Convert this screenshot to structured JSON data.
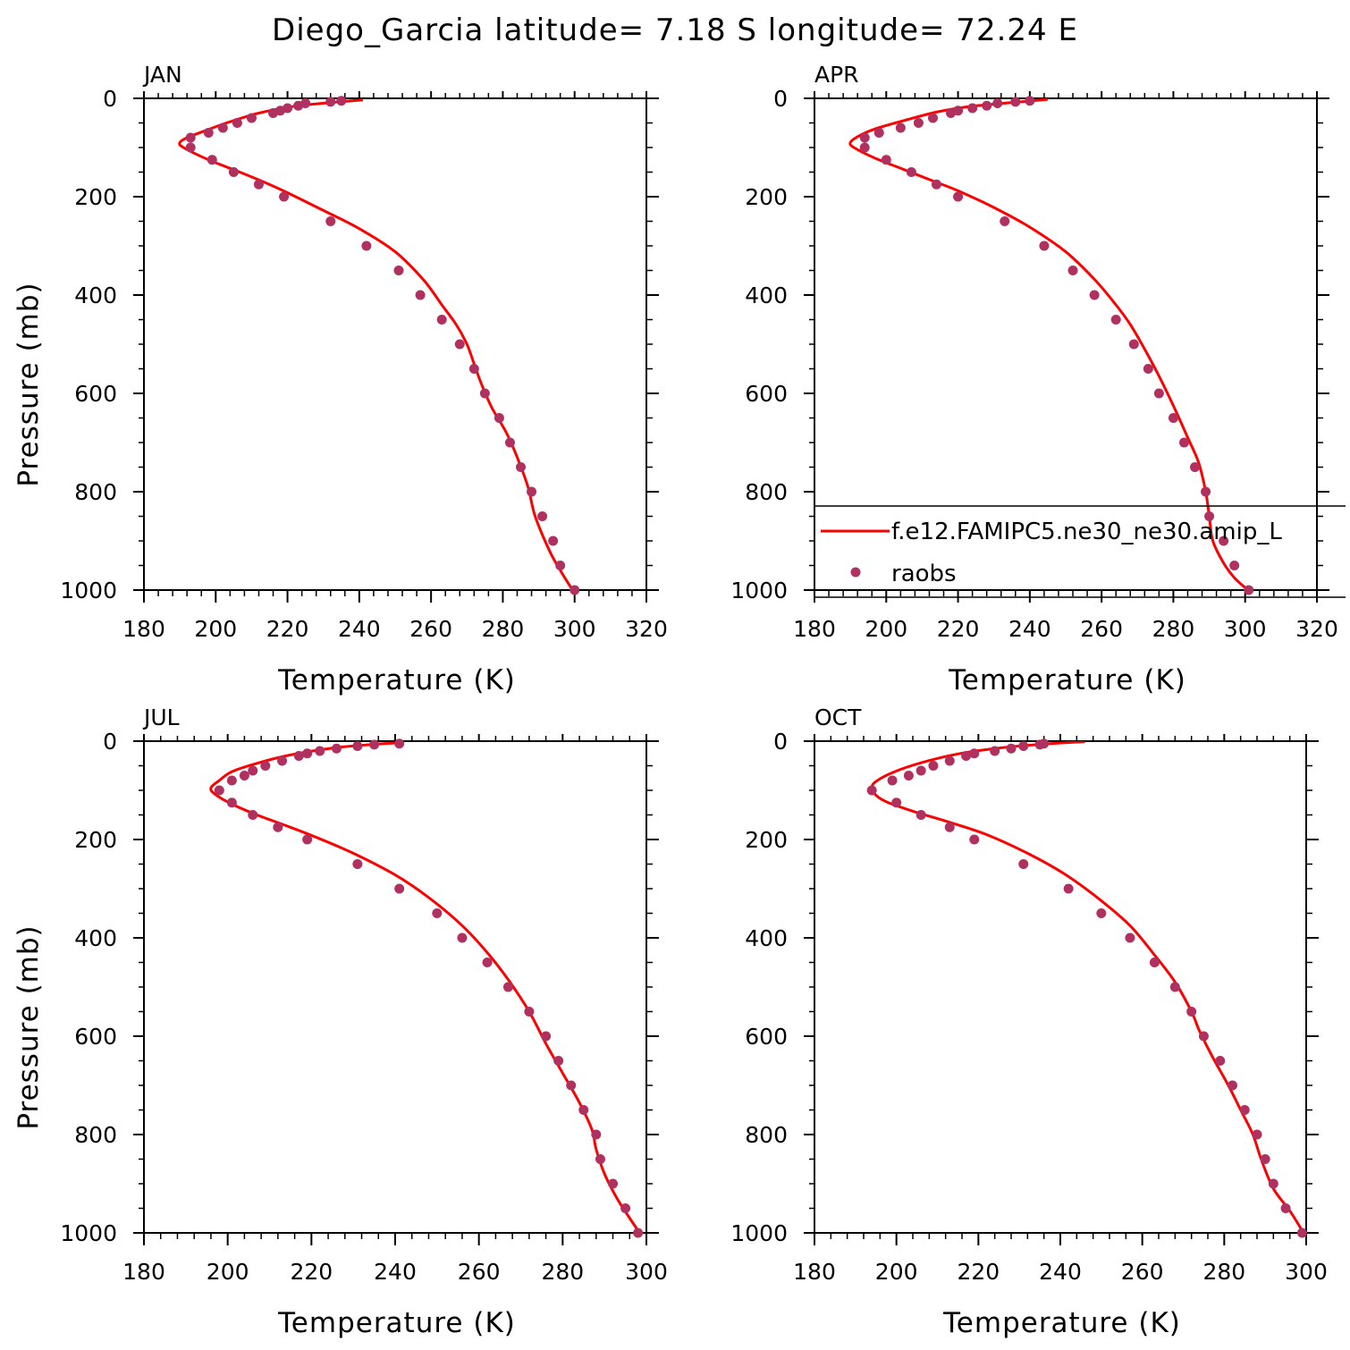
{
  "title": "Diego_Garcia  latitude= 7.18 S longitude= 72.24 E",
  "colors": {
    "model_line": "#ff0000",
    "obs_marker": "#b03060",
    "axis": "#000000"
  },
  "legend": {
    "placement": "inside APR panel, bottom",
    "entries": [
      {
        "label": "f.e12.FAMIPC5.ne30_ne30.amip_L",
        "kind": "line"
      },
      {
        "label": "raobs",
        "kind": "marker"
      }
    ]
  },
  "chart_data": [
    {
      "type": "line+scatter",
      "panel": "JAN",
      "xlabel": "Temperature (K)",
      "ylabel": "Pressure (mb)",
      "xlim": [
        180,
        320
      ],
      "ylim": [
        1000,
        0
      ],
      "xticks": [
        180,
        200,
        220,
        240,
        260,
        280,
        300,
        320
      ],
      "yticks": [
        0,
        200,
        400,
        600,
        800,
        1000
      ],
      "model": {
        "name": "f.e12.FAMIPC5.ne30_ne30.amip_L",
        "points": [
          [
            241,
            3
          ],
          [
            233,
            8
          ],
          [
            222,
            16
          ],
          [
            212,
            30
          ],
          [
            203,
            50
          ],
          [
            197,
            66
          ],
          [
            192,
            80
          ],
          [
            190,
            90
          ],
          [
            191,
            100
          ],
          [
            198,
            125
          ],
          [
            206,
            148
          ],
          [
            214,
            172
          ],
          [
            220,
            192
          ],
          [
            230,
            228
          ],
          [
            240,
            265
          ],
          [
            250,
            312
          ],
          [
            258,
            370
          ],
          [
            263,
            420
          ],
          [
            267,
            460
          ],
          [
            270,
            500
          ],
          [
            272,
            540
          ],
          [
            274,
            580
          ],
          [
            277,
            630
          ],
          [
            281,
            680
          ],
          [
            284,
            730
          ],
          [
            287,
            790
          ],
          [
            289,
            850
          ],
          [
            293,
            920
          ],
          [
            296,
            960
          ],
          [
            299,
            995
          ]
        ]
      },
      "observations": {
        "name": "raobs",
        "points": [
          [
            235,
            5
          ],
          [
            232,
            7
          ],
          [
            225,
            10
          ],
          [
            223,
            15
          ],
          [
            220,
            20
          ],
          [
            218,
            25
          ],
          [
            216,
            30
          ],
          [
            210,
            40
          ],
          [
            206,
            50
          ],
          [
            202,
            60
          ],
          [
            198,
            70
          ],
          [
            193,
            80
          ],
          [
            193,
            100
          ],
          [
            199,
            125
          ],
          [
            205,
            150
          ],
          [
            212,
            175
          ],
          [
            219,
            200
          ],
          [
            232,
            250
          ],
          [
            242,
            300
          ],
          [
            251,
            350
          ],
          [
            257,
            400
          ],
          [
            263,
            450
          ],
          [
            268,
            500
          ],
          [
            272,
            550
          ],
          [
            275,
            600
          ],
          [
            279,
            650
          ],
          [
            282,
            700
          ],
          [
            285,
            750
          ],
          [
            288,
            800
          ],
          [
            291,
            850
          ],
          [
            294,
            900
          ],
          [
            296,
            950
          ],
          [
            300,
            1000
          ]
        ]
      }
    },
    {
      "type": "line+scatter",
      "panel": "APR",
      "xlabel": "Temperature (K)",
      "ylabel": "",
      "xlim": [
        180,
        320
      ],
      "ylim": [
        1000,
        0
      ],
      "xticks": [
        180,
        200,
        220,
        240,
        260,
        280,
        300,
        320
      ],
      "yticks": [
        0,
        200,
        400,
        600,
        800,
        1000
      ],
      "model": {
        "name": "f.e12.FAMIPC5.ne30_ne30.amip_L",
        "points": [
          [
            245,
            2
          ],
          [
            236,
            8
          ],
          [
            224,
            16
          ],
          [
            214,
            28
          ],
          [
            205,
            45
          ],
          [
            197,
            62
          ],
          [
            192,
            78
          ],
          [
            190,
            90
          ],
          [
            191,
            100
          ],
          [
            197,
            122
          ],
          [
            205,
            145
          ],
          [
            213,
            168
          ],
          [
            220,
            188
          ],
          [
            230,
            222
          ],
          [
            240,
            262
          ],
          [
            250,
            312
          ],
          [
            258,
            368
          ],
          [
            264,
            420
          ],
          [
            268,
            460
          ],
          [
            272,
            510
          ],
          [
            276,
            565
          ],
          [
            280,
            625
          ],
          [
            284,
            690
          ],
          [
            287,
            740
          ],
          [
            289,
            800
          ],
          [
            290,
            850
          ],
          [
            291,
            900
          ],
          [
            294,
            945
          ],
          [
            297,
            975
          ],
          [
            300,
            995
          ]
        ]
      },
      "observations": {
        "name": "raobs",
        "points": [
          [
            240,
            5
          ],
          [
            236,
            7
          ],
          [
            231,
            10
          ],
          [
            228,
            15
          ],
          [
            224,
            20
          ],
          [
            220,
            25
          ],
          [
            218,
            30
          ],
          [
            213,
            40
          ],
          [
            209,
            50
          ],
          [
            204,
            60
          ],
          [
            198,
            70
          ],
          [
            194,
            80
          ],
          [
            194,
            100
          ],
          [
            200,
            125
          ],
          [
            207,
            150
          ],
          [
            214,
            175
          ],
          [
            220,
            200
          ],
          [
            233,
            250
          ],
          [
            244,
            300
          ],
          [
            252,
            350
          ],
          [
            258,
            400
          ],
          [
            264,
            450
          ],
          [
            269,
            500
          ],
          [
            273,
            550
          ],
          [
            276,
            600
          ],
          [
            280,
            650
          ],
          [
            283,
            700
          ],
          [
            286,
            750
          ],
          [
            289,
            800
          ],
          [
            290,
            850
          ],
          [
            294,
            900
          ],
          [
            297,
            950
          ],
          [
            301,
            1000
          ]
        ]
      }
    },
    {
      "type": "line+scatter",
      "panel": "JUL",
      "xlabel": "Temperature (K)",
      "ylabel": "Pressure (mb)",
      "xlim": [
        180,
        300
      ],
      "ylim": [
        1000,
        0
      ],
      "xticks": [
        180,
        200,
        220,
        240,
        260,
        280,
        300
      ],
      "yticks": [
        0,
        200,
        400,
        600,
        800,
        1000
      ],
      "model": {
        "name": "f.e12.FAMIPC5.ne30_ne30.amip_L",
        "points": [
          [
            242,
            3
          ],
          [
            234,
            7
          ],
          [
            225,
            14
          ],
          [
            215,
            28
          ],
          [
            207,
            45
          ],
          [
            201,
            62
          ],
          [
            198,
            80
          ],
          [
            196,
            95
          ],
          [
            197,
            108
          ],
          [
            201,
            128
          ],
          [
            207,
            150
          ],
          [
            214,
            172
          ],
          [
            221,
            195
          ],
          [
            230,
            228
          ],
          [
            240,
            272
          ],
          [
            248,
            318
          ],
          [
            256,
            375
          ],
          [
            262,
            430
          ],
          [
            267,
            485
          ],
          [
            272,
            550
          ],
          [
            276,
            615
          ],
          [
            280,
            675
          ],
          [
            284,
            735
          ],
          [
            287,
            790
          ],
          [
            288,
            830
          ],
          [
            290,
            880
          ],
          [
            293,
            930
          ],
          [
            296,
            970
          ],
          [
            298,
            995
          ]
        ]
      },
      "observations": {
        "name": "raobs",
        "points": [
          [
            241,
            5
          ],
          [
            235,
            7
          ],
          [
            231,
            10
          ],
          [
            226,
            15
          ],
          [
            222,
            20
          ],
          [
            219,
            25
          ],
          [
            217,
            30
          ],
          [
            213,
            40
          ],
          [
            209,
            50
          ],
          [
            206,
            60
          ],
          [
            204,
            70
          ],
          [
            201,
            80
          ],
          [
            198,
            100
          ],
          [
            201,
            125
          ],
          [
            206,
            150
          ],
          [
            212,
            175
          ],
          [
            219,
            200
          ],
          [
            231,
            250
          ],
          [
            241,
            300
          ],
          [
            250,
            350
          ],
          [
            256,
            400
          ],
          [
            262,
            450
          ],
          [
            267,
            500
          ],
          [
            272,
            550
          ],
          [
            276,
            600
          ],
          [
            279,
            650
          ],
          [
            282,
            700
          ],
          [
            285,
            750
          ],
          [
            288,
            800
          ],
          [
            289,
            850
          ],
          [
            292,
            900
          ],
          [
            295,
            950
          ],
          [
            298,
            1000
          ]
        ]
      }
    },
    {
      "type": "line+scatter",
      "panel": "OCT",
      "xlabel": "Temperature (K)",
      "ylabel": "",
      "xlim": [
        180,
        300
      ],
      "ylim": [
        1000,
        0
      ],
      "xticks": [
        180,
        200,
        220,
        240,
        260,
        280,
        300
      ],
      "yticks": [
        0,
        200,
        400,
        600,
        800,
        1000
      ],
      "model": {
        "name": "f.e12.FAMIPC5.ne30_ne30.amip_L",
        "points": [
          [
            246,
            1
          ],
          [
            236,
            6
          ],
          [
            225,
            14
          ],
          [
            215,
            26
          ],
          [
            206,
            44
          ],
          [
            199,
            64
          ],
          [
            195,
            82
          ],
          [
            194,
            95
          ],
          [
            195,
            110
          ],
          [
            198,
            125
          ],
          [
            205,
            145
          ],
          [
            213,
            165
          ],
          [
            222,
            190
          ],
          [
            232,
            228
          ],
          [
            241,
            270
          ],
          [
            249,
            318
          ],
          [
            257,
            375
          ],
          [
            263,
            435
          ],
          [
            268,
            490
          ],
          [
            272,
            550
          ],
          [
            274,
            590
          ],
          [
            277,
            640
          ],
          [
            281,
            700
          ],
          [
            284,
            750
          ],
          [
            287,
            800
          ],
          [
            289,
            850
          ],
          [
            292,
            910
          ],
          [
            296,
            955
          ],
          [
            299,
            995
          ]
        ]
      },
      "observations": {
        "name": "raobs",
        "points": [
          [
            236,
            5
          ],
          [
            235,
            7
          ],
          [
            231,
            10
          ],
          [
            228,
            15
          ],
          [
            224,
            20
          ],
          [
            219,
            25
          ],
          [
            217,
            30
          ],
          [
            213,
            40
          ],
          [
            209,
            50
          ],
          [
            206,
            60
          ],
          [
            203,
            70
          ],
          [
            199,
            80
          ],
          [
            194,
            100
          ],
          [
            200,
            125
          ],
          [
            206,
            150
          ],
          [
            213,
            175
          ],
          [
            219,
            200
          ],
          [
            231,
            250
          ],
          [
            242,
            300
          ],
          [
            250,
            350
          ],
          [
            257,
            400
          ],
          [
            263,
            450
          ],
          [
            268,
            500
          ],
          [
            272,
            550
          ],
          [
            275,
            600
          ],
          [
            279,
            650
          ],
          [
            282,
            700
          ],
          [
            285,
            750
          ],
          [
            288,
            800
          ],
          [
            290,
            850
          ],
          [
            292,
            900
          ],
          [
            295,
            950
          ],
          [
            299,
            1000
          ]
        ]
      }
    }
  ]
}
